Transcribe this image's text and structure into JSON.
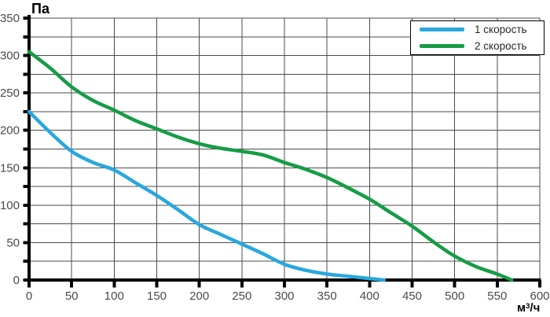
{
  "chart_title_y": "Па",
  "x_unit": {
    "base": "м",
    "sup": "3",
    "rest": "/ч"
  },
  "legend": {
    "items": [
      {
        "label": "1 скорость",
        "color": "#29a7de"
      },
      {
        "label": "2 скорость",
        "color": "#169c45"
      }
    ]
  },
  "chart_data": {
    "type": "line",
    "title": "",
    "ylabel": "Па",
    "xlabel": "м3/ч",
    "xlim": [
      0,
      600
    ],
    "ylim": [
      0,
      350
    ],
    "x_tick_labels": [
      0,
      50,
      100,
      150,
      200,
      250,
      300,
      350,
      400,
      450,
      500,
      550,
      600
    ],
    "y_tick_labels": [
      0,
      50,
      100,
      150,
      200,
      250,
      300,
      350
    ],
    "grid": {
      "x_step": 50,
      "y_step": 25,
      "color": "#4b4b4b",
      "on": true
    },
    "legend_position": "top-right",
    "axis_color": "#000000",
    "tick_label_color": "#4a4a4a",
    "series": [
      {
        "name": "1 скорость",
        "color": "#29a7de",
        "points": [
          [
            0,
            225
          ],
          [
            25,
            197
          ],
          [
            50,
            172
          ],
          [
            75,
            157
          ],
          [
            100,
            147
          ],
          [
            125,
            130
          ],
          [
            150,
            113
          ],
          [
            175,
            94
          ],
          [
            200,
            74
          ],
          [
            225,
            61
          ],
          [
            250,
            48
          ],
          [
            275,
            35
          ],
          [
            300,
            21
          ],
          [
            325,
            13
          ],
          [
            350,
            8
          ],
          [
            375,
            5
          ],
          [
            400,
            2
          ],
          [
            417,
            0
          ]
        ]
      },
      {
        "name": "2 скорость",
        "color": "#169c45",
        "points": [
          [
            0,
            305
          ],
          [
            25,
            283
          ],
          [
            50,
            258
          ],
          [
            75,
            240
          ],
          [
            100,
            227
          ],
          [
            125,
            213
          ],
          [
            150,
            202
          ],
          [
            175,
            191
          ],
          [
            200,
            182
          ],
          [
            225,
            176
          ],
          [
            250,
            172
          ],
          [
            275,
            167
          ],
          [
            300,
            157
          ],
          [
            325,
            148
          ],
          [
            350,
            137
          ],
          [
            375,
            123
          ],
          [
            400,
            108
          ],
          [
            425,
            90
          ],
          [
            450,
            72
          ],
          [
            475,
            51
          ],
          [
            500,
            32
          ],
          [
            525,
            18
          ],
          [
            550,
            8
          ],
          [
            567,
            0
          ]
        ]
      }
    ]
  }
}
